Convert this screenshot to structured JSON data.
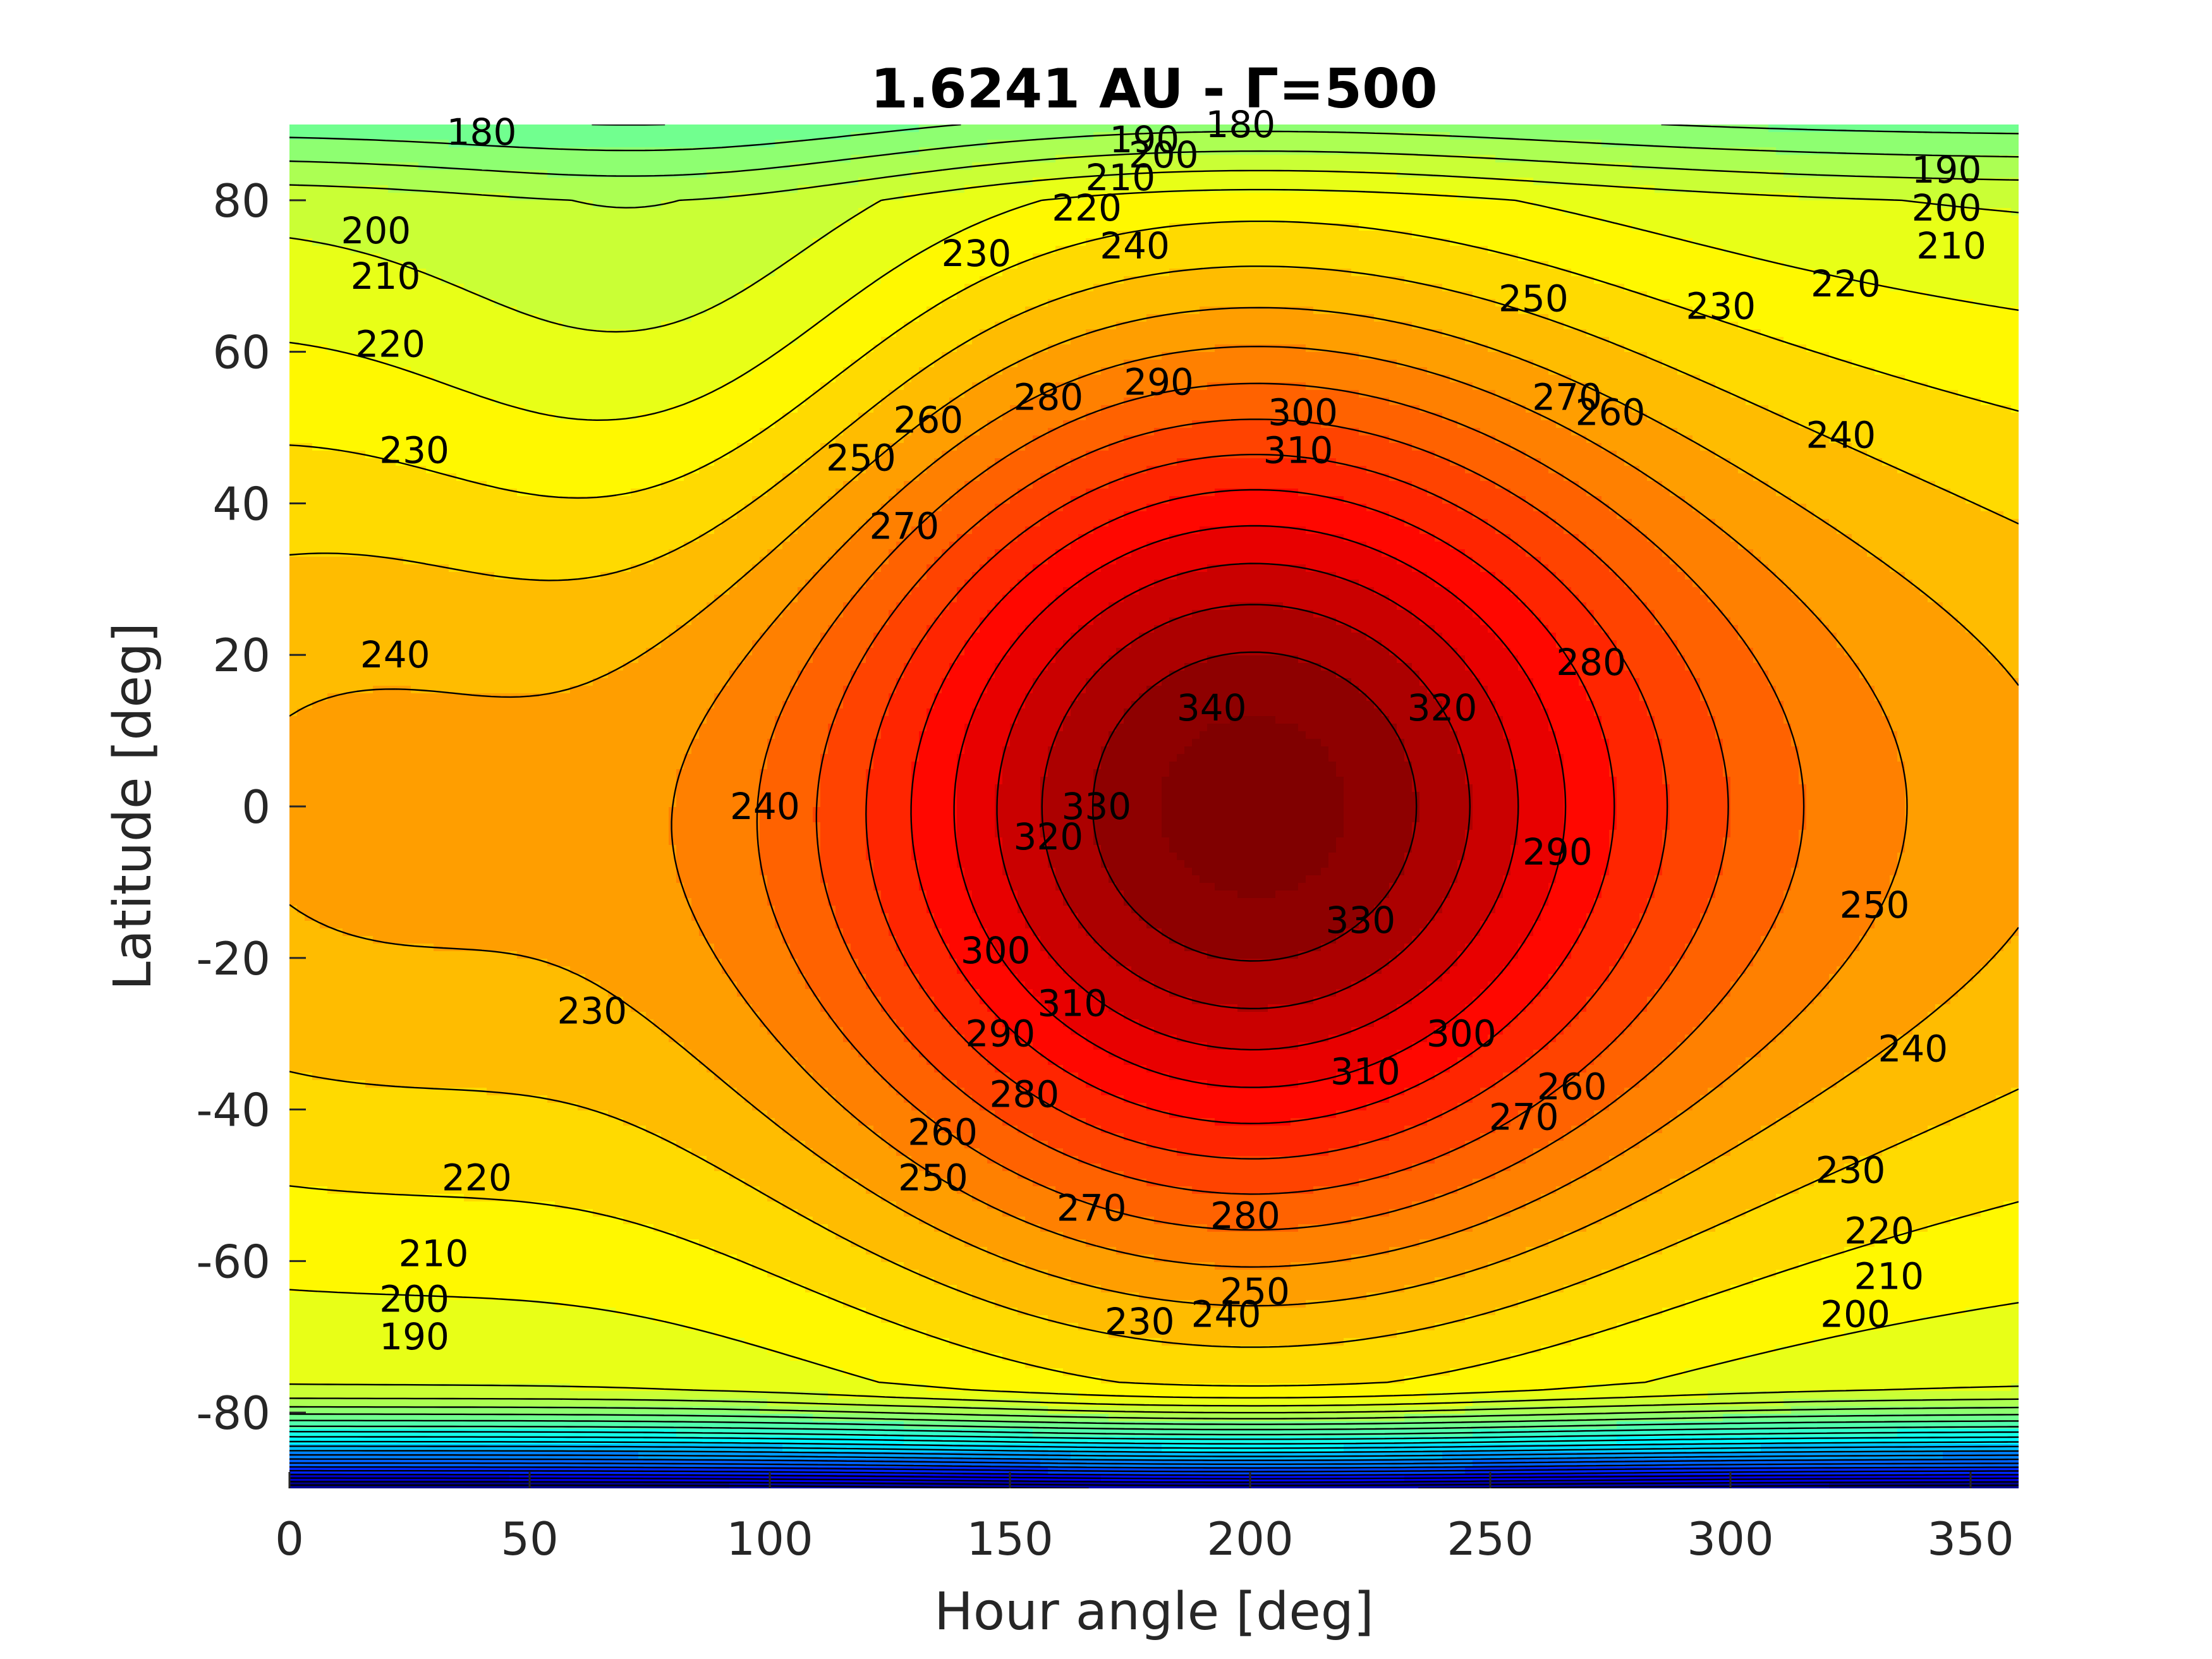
{
  "chart_data": {
    "type": "contour",
    "title": "1.6241 AU - Γ=500",
    "xlabel": "Hour angle [deg]",
    "ylabel": "Latitude [deg]",
    "xlim": [
      0,
      360
    ],
    "ylim": [
      -90,
      90
    ],
    "xticks": [
      0,
      50,
      100,
      150,
      200,
      250,
      300,
      350
    ],
    "yticks": [
      80,
      60,
      40,
      20,
      0,
      -20,
      -40,
      -60,
      -80
    ],
    "xtick_labels": [
      "0",
      "50",
      "100",
      "150",
      "200",
      "250",
      "300",
      "350"
    ],
    "ytick_labels": [
      "80",
      "60",
      "40",
      "20",
      "0",
      "-20",
      "-40",
      "-60",
      "-80"
    ],
    "colormap": "jet",
    "contour_levels": [
      10,
      20,
      30,
      40,
      50,
      60,
      70,
      80,
      90,
      100,
      110,
      120,
      130,
      140,
      150,
      160,
      170,
      180,
      190,
      200,
      210,
      220,
      230,
      240,
      250,
      260,
      270,
      280,
      290,
      300,
      310,
      320,
      330,
      340
    ],
    "peak": {
      "hour_angle": 200,
      "latitude": 0,
      "value": 345
    },
    "contour_labels": [
      {
        "text": "180",
        "x": 40,
        "y": 89
      },
      {
        "text": "180",
        "x": 198,
        "y": 90
      },
      {
        "text": "190",
        "x": 178,
        "y": 88
      },
      {
        "text": "200",
        "x": 182,
        "y": 86
      },
      {
        "text": "210",
        "x": 173,
        "y": 83
      },
      {
        "text": "220",
        "x": 166,
        "y": 79
      },
      {
        "text": "240",
        "x": 176,
        "y": 74
      },
      {
        "text": "230",
        "x": 143,
        "y": 73
      },
      {
        "text": "190",
        "x": 345,
        "y": 84
      },
      {
        "text": "200",
        "x": 345,
        "y": 79
      },
      {
        "text": "210",
        "x": 346,
        "y": 74
      },
      {
        "text": "220",
        "x": 324,
        "y": 69
      },
      {
        "text": "230",
        "x": 298,
        "y": 66
      },
      {
        "text": "250",
        "x": 259,
        "y": 67
      },
      {
        "text": "240",
        "x": 323,
        "y": 49
      },
      {
        "text": "200",
        "x": 18,
        "y": 76
      },
      {
        "text": "210",
        "x": 20,
        "y": 70
      },
      {
        "text": "220",
        "x": 21,
        "y": 61
      },
      {
        "text": "230",
        "x": 26,
        "y": 47
      },
      {
        "text": "240",
        "x": 22,
        "y": 20
      },
      {
        "text": "280",
        "x": 158,
        "y": 54
      },
      {
        "text": "290",
        "x": 181,
        "y": 56
      },
      {
        "text": "300",
        "x": 211,
        "y": 52
      },
      {
        "text": "310",
        "x": 210,
        "y": 47
      },
      {
        "text": "270",
        "x": 266,
        "y": 54
      },
      {
        "text": "260",
        "x": 275,
        "y": 52
      },
      {
        "text": "250",
        "x": 119,
        "y": 46
      },
      {
        "text": "260",
        "x": 133,
        "y": 51
      },
      {
        "text": "270",
        "x": 128,
        "y": 37
      },
      {
        "text": "340",
        "x": 192,
        "y": 13
      },
      {
        "text": "320",
        "x": 240,
        "y": 13
      },
      {
        "text": "280",
        "x": 271,
        "y": 19
      },
      {
        "text": "240",
        "x": 99,
        "y": 0
      },
      {
        "text": "330",
        "x": 168,
        "y": 0
      },
      {
        "text": "320",
        "x": 158,
        "y": -4
      },
      {
        "text": "290",
        "x": 264,
        "y": -6
      },
      {
        "text": "250",
        "x": 330,
        "y": -13
      },
      {
        "text": "330",
        "x": 223,
        "y": -15
      },
      {
        "text": "300",
        "x": 147,
        "y": -19
      },
      {
        "text": "310",
        "x": 163,
        "y": -26
      },
      {
        "text": "290",
        "x": 148,
        "y": -30
      },
      {
        "text": "280",
        "x": 153,
        "y": -38
      },
      {
        "text": "300",
        "x": 244,
        "y": -30
      },
      {
        "text": "310",
        "x": 224,
        "y": -35
      },
      {
        "text": "270",
        "x": 257,
        "y": -41
      },
      {
        "text": "260",
        "x": 267,
        "y": -37
      },
      {
        "text": "240",
        "x": 338,
        "y": -32
      },
      {
        "text": "230",
        "x": 63,
        "y": -27
      },
      {
        "text": "260",
        "x": 136,
        "y": -43
      },
      {
        "text": "250",
        "x": 134,
        "y": -49
      },
      {
        "text": "270",
        "x": 167,
        "y": -53
      },
      {
        "text": "280",
        "x": 199,
        "y": -54
      },
      {
        "text": "230",
        "x": 325,
        "y": -48
      },
      {
        "text": "220",
        "x": 39,
        "y": -49
      },
      {
        "text": "220",
        "x": 331,
        "y": -56
      },
      {
        "text": "210",
        "x": 30,
        "y": -59
      },
      {
        "text": "210",
        "x": 333,
        "y": -62
      },
      {
        "text": "200",
        "x": 26,
        "y": -65
      },
      {
        "text": "200",
        "x": 326,
        "y": -67
      },
      {
        "text": "250",
        "x": 201,
        "y": -64
      },
      {
        "text": "240",
        "x": 195,
        "y": -67
      },
      {
        "text": "230",
        "x": 177,
        "y": -68
      },
      {
        "text": "190",
        "x": 26,
        "y": -70
      }
    ]
  }
}
